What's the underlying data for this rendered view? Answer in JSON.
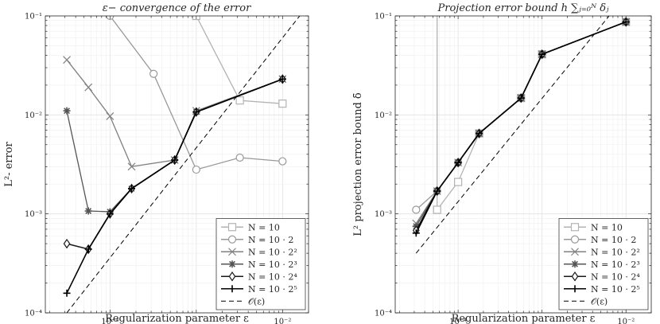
{
  "chart_data": [
    {
      "type": "line",
      "title": "ε− convergence of the error",
      "xlabel": "Regularization parameter ε",
      "ylabel": "L²- error",
      "xscale": "log",
      "yscale": "log",
      "xlim": [
        1.78e-05,
        0.02
      ],
      "ylim": [
        0.0001,
        0.1
      ],
      "x_tick_labels": [
        "10⁻⁴",
        "10⁻²"
      ],
      "y_tick_labels": [
        "10⁻⁴",
        "10⁻³",
        "10⁻²",
        "10⁻¹"
      ],
      "legend_position": "bottom-right",
      "series": [
        {
          "name": "N = 10",
          "color": "#b3b3b3",
          "marker": "square",
          "x": [
            0.00032,
            0.001,
            0.0032,
            0.01
          ],
          "y": [
            0.32,
            0.1,
            0.014,
            0.013
          ]
        },
        {
          "name": "N = 10 · 2",
          "color": "#999999",
          "marker": "circle",
          "x": [
            5.6e-05,
            0.0001,
            0.00032,
            0.001,
            0.0032,
            0.01
          ],
          "y": [
            0.13,
            0.1,
            0.026,
            0.0028,
            0.0037,
            0.0034
          ]
        },
        {
          "name": "N = 10 · 2²",
          "color": "#808080",
          "marker": "x",
          "x": [
            3.16e-05,
            5.62e-05,
            0.0001,
            0.000178,
            0.000562,
            0.001,
            0.01
          ],
          "y": [
            0.036,
            0.019,
            0.0097,
            0.003,
            0.0035,
            0.011,
            0.023
          ]
        },
        {
          "name": "N = 10 · 2³",
          "color": "#555555",
          "marker": "asterisk",
          "x": [
            3.16e-05,
            5.62e-05,
            0.0001,
            0.000178,
            0.000562,
            0.001,
            0.01
          ],
          "y": [
            0.011,
            0.00107,
            0.00105,
            0.0018,
            0.0035,
            0.0107,
            0.023
          ]
        },
        {
          "name": "N = 10 · 2⁴",
          "color": "#1a1a1a",
          "marker": "diamond",
          "x": [
            3.16e-05,
            5.62e-05,
            0.0001,
            0.000178,
            0.000562,
            0.001,
            0.01
          ],
          "y": [
            0.0005,
            0.00044,
            0.001,
            0.0018,
            0.0035,
            0.0107,
            0.023
          ]
        },
        {
          "name": "N = 10 · 2⁵",
          "color": "#000000",
          "marker": "plus",
          "x": [
            3.16e-05,
            5.62e-05,
            0.0001,
            0.000178,
            0.000562,
            0.001,
            0.01
          ],
          "y": [
            0.000158,
            0.00044,
            0.001,
            0.0018,
            0.0035,
            0.0107,
            0.023
          ]
        },
        {
          "name": "𝒪(ε)",
          "color": "#000000",
          "dash": true,
          "marker": "none",
          "x": [
            3.16e-05,
            0.0158
          ],
          "y": [
            0.0001,
            0.1
          ]
        }
      ]
    },
    {
      "type": "line",
      "title": "Projection error bound h ∑ⱼ₌₀ᴺ δⱼ",
      "xlabel": "Regularization parameter ε",
      "ylabel": "L² projection error bound δ̄",
      "xscale": "log",
      "yscale": "log",
      "xlim": [
        1.78e-05,
        0.02
      ],
      "ylim": [
        0.0001,
        0.1
      ],
      "x_tick_labels": [
        "10⁻⁴",
        "10⁻²"
      ],
      "y_tick_labels": [
        "10⁻⁴",
        "10⁻³",
        "10⁻²",
        "10⁻¹"
      ],
      "legend_position": "bottom-right",
      "series": [
        {
          "name": "N = 10",
          "color": "#b3b3b3",
          "marker": "square",
          "x": [
            5.62e-05,
            5.62e-05,
            0.0001,
            0.000178,
            0.000562,
            0.001,
            0.01
          ],
          "y": [
            0.2,
            0.0011,
            0.0021,
            0.0065,
            0.0148,
            0.041,
            0.087
          ]
        },
        {
          "name": "N = 10 · 2",
          "color": "#999999",
          "marker": "circle",
          "x": [
            3.16e-05,
            5.62e-05,
            0.0001,
            0.000178,
            0.000562,
            0.001,
            0.01
          ],
          "y": [
            0.0011,
            0.0017,
            0.0033,
            0.0065,
            0.0148,
            0.041,
            0.087
          ]
        },
        {
          "name": "N = 10 · 2²",
          "color": "#808080",
          "marker": "x",
          "x": [
            3.16e-05,
            5.62e-05,
            0.0001,
            0.000178,
            0.000562,
            0.001,
            0.01
          ],
          "y": [
            0.0008,
            0.0017,
            0.0033,
            0.0065,
            0.0148,
            0.041,
            0.087
          ]
        },
        {
          "name": "N = 10 · 2³",
          "color": "#555555",
          "marker": "asterisk",
          "x": [
            3.16e-05,
            5.62e-05,
            0.0001,
            0.000178,
            0.000562,
            0.001,
            0.01
          ],
          "y": [
            0.00075,
            0.0017,
            0.0033,
            0.0065,
            0.0148,
            0.041,
            0.087
          ]
        },
        {
          "name": "N = 10 · 2⁴",
          "color": "#1a1a1a",
          "marker": "diamond",
          "x": [
            3.16e-05,
            5.62e-05,
            0.0001,
            0.000178,
            0.000562,
            0.001,
            0.01
          ],
          "y": [
            0.00068,
            0.0017,
            0.0033,
            0.0065,
            0.0148,
            0.041,
            0.087
          ]
        },
        {
          "name": "N = 10 · 2⁵",
          "color": "#000000",
          "marker": "plus",
          "x": [
            3.16e-05,
            5.62e-05,
            0.0001,
            0.000178,
            0.000562,
            0.001,
            0.01
          ],
          "y": [
            0.00064,
            0.0017,
            0.0033,
            0.0065,
            0.0148,
            0.041,
            0.087
          ]
        },
        {
          "name": "𝒪(ε)",
          "color": "#000000",
          "dash": true,
          "marker": "none",
          "x": [
            3.16e-05,
            0.0063
          ],
          "y": [
            0.0004,
            0.1
          ]
        }
      ]
    }
  ]
}
